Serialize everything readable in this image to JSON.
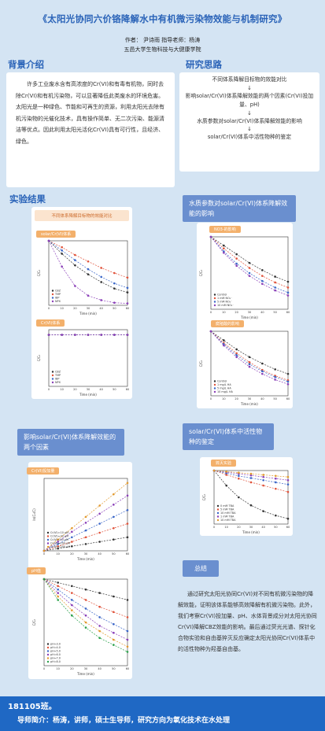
{
  "title": "《太阳光协同六价铬降解水中有机微污染物效能与机制研究》",
  "authors": {
    "line1": "作者： 尹诗雨    指导老师：杨涛",
    "line2": "五邑大学生物科技与大健康学院"
  },
  "background": {
    "heading": "背景介绍",
    "text": "许多工业废水含有高浓度的Cr(VI)和有毒有机物，同时去除Cr(VI)和有机污染物，可以显著降低此类废水的环境危害。太阳光是一种绿色、节能和可再生的资源，利用太阳光去除有机污染物的光催化技术，具有操作简单、无二次污染、能源清洁等优点。因此利用太阳光活化Cr(VI)具有可行性，且经济、绿色。"
  },
  "approach": {
    "heading": "研究思路",
    "steps": [
      "不同体系降解目标物的效能对比",
      "影响solar/Cr(VI)体系降解效能的两个因素(Cr(VI)投加量、pH)",
      "水质参数对solar/Cr(VI)体系降解效能的影响",
      "solar/Cr(VI)体系中活性物种的鉴定"
    ],
    "arrow": "↓"
  },
  "results": {
    "heading": "实验结果",
    "compare_title": "不同体系降解目标物的效能对比",
    "tag_solar": "solar/Cr(VI)体系",
    "tag_cr": "Cr(VI)体系",
    "water_heading": "水质参数对solar/Cr(VI)体系降解效能的影响",
    "tag_no3": "NO3-的影响",
    "tag_hco3": "腐殖酸的影响",
    "factors_heading": "影响solar/Cr(VI)体系降解效能的两个因素",
    "tag_crdose": "Cr(VI)投加量",
    "tag_ph": "pH值",
    "species_heading": "solar/Cr(VI)体系中活性物种的鉴定",
    "tag_quench": "猝灭实验",
    "summary_tag": "总结",
    "axis_x": "Time (min)",
    "axis_y": "C/C₀",
    "axis_y_ln": "ln(C₀/C)"
  },
  "legends": {
    "compare": [
      "CBZ",
      "TMP",
      "IBP",
      "NPX"
    ],
    "no3": [
      "Control",
      "1 mM NO₃⁻",
      "5 mM NO₃⁻",
      "10 mM NO₃⁻"
    ],
    "ha": [
      "Control",
      "1 mg/L HA",
      "5 mg/L HA",
      "10 mg/L HA"
    ],
    "crdose": [
      "Cr(VI)=10 μM",
      "Cr(VI)=20 μM",
      "Cr(VI)=50 μM",
      "Cr(VI)=100 μM",
      "Cr(VI)=200 μM"
    ],
    "ph": [
      "pH=3.0",
      "pH=4.0",
      "pH=5.0",
      "pH=6.0",
      "pH=7.0",
      "pH=8.0"
    ],
    "quench": [
      "0 mM TBA",
      "5 mM TBA",
      "10 mM TBA",
      "1 mM TBA",
      "10 mM TBA"
    ]
  },
  "chart_data": [
    {
      "type": "line",
      "ylim": [
        0,
        1.0
      ],
      "xlim": [
        0,
        60
      ],
      "series": [
        {
          "name": "CBZ",
          "values": [
            1,
            0.8,
            0.62,
            0.48,
            0.36,
            0.26,
            0.2
          ]
        },
        {
          "name": "TMP",
          "values": [
            1,
            0.9,
            0.78,
            0.68,
            0.58,
            0.5,
            0.43
          ]
        },
        {
          "name": "IBP",
          "values": [
            1,
            0.85,
            0.7,
            0.56,
            0.44,
            0.34,
            0.27
          ]
        },
        {
          "name": "NPX",
          "values": [
            1,
            0.6,
            0.3,
            0.15,
            0.08,
            0.04,
            0.03
          ]
        }
      ]
    },
    {
      "type": "line",
      "ylim": [
        0,
        1.0
      ],
      "xlim": [
        0,
        60
      ],
      "series": [
        {
          "name": "CBZ",
          "values": [
            1,
            1,
            1,
            1,
            1,
            1,
            1
          ]
        },
        {
          "name": "TMP",
          "values": [
            1,
            1,
            1,
            1,
            1,
            1,
            1
          ]
        },
        {
          "name": "IBP",
          "values": [
            1,
            1,
            1,
            1,
            1,
            1,
            1
          ]
        },
        {
          "name": "NPX",
          "values": [
            1,
            1,
            1,
            1,
            1,
            1,
            1
          ]
        }
      ]
    }
  ],
  "conclusion": "通过研究太阳光协同Cr(VI)对不同有机微污染物的降解效能，证明该体系能够高效降解有机微污染物。此外，我们考察Cr(VI)投加量、pH、水体背景成分对太阳光协同Cr(VI)降解CBZ效能的影响。最后通过荧光光谱、探针化合物实验和自由基猝灭反应确定太阳光协同Cr(VI)体系中的活性物种为羟基自由基。",
  "footer": {
    "line1": "181105班。",
    "line2": "导师简介：杨涛，讲师，硕士生导师，研究方向为氧化技术在水处理"
  },
  "colors": {
    "accent": "#2a63b8",
    "tag": "#6a8fcf",
    "footer": "#1f68c4"
  }
}
